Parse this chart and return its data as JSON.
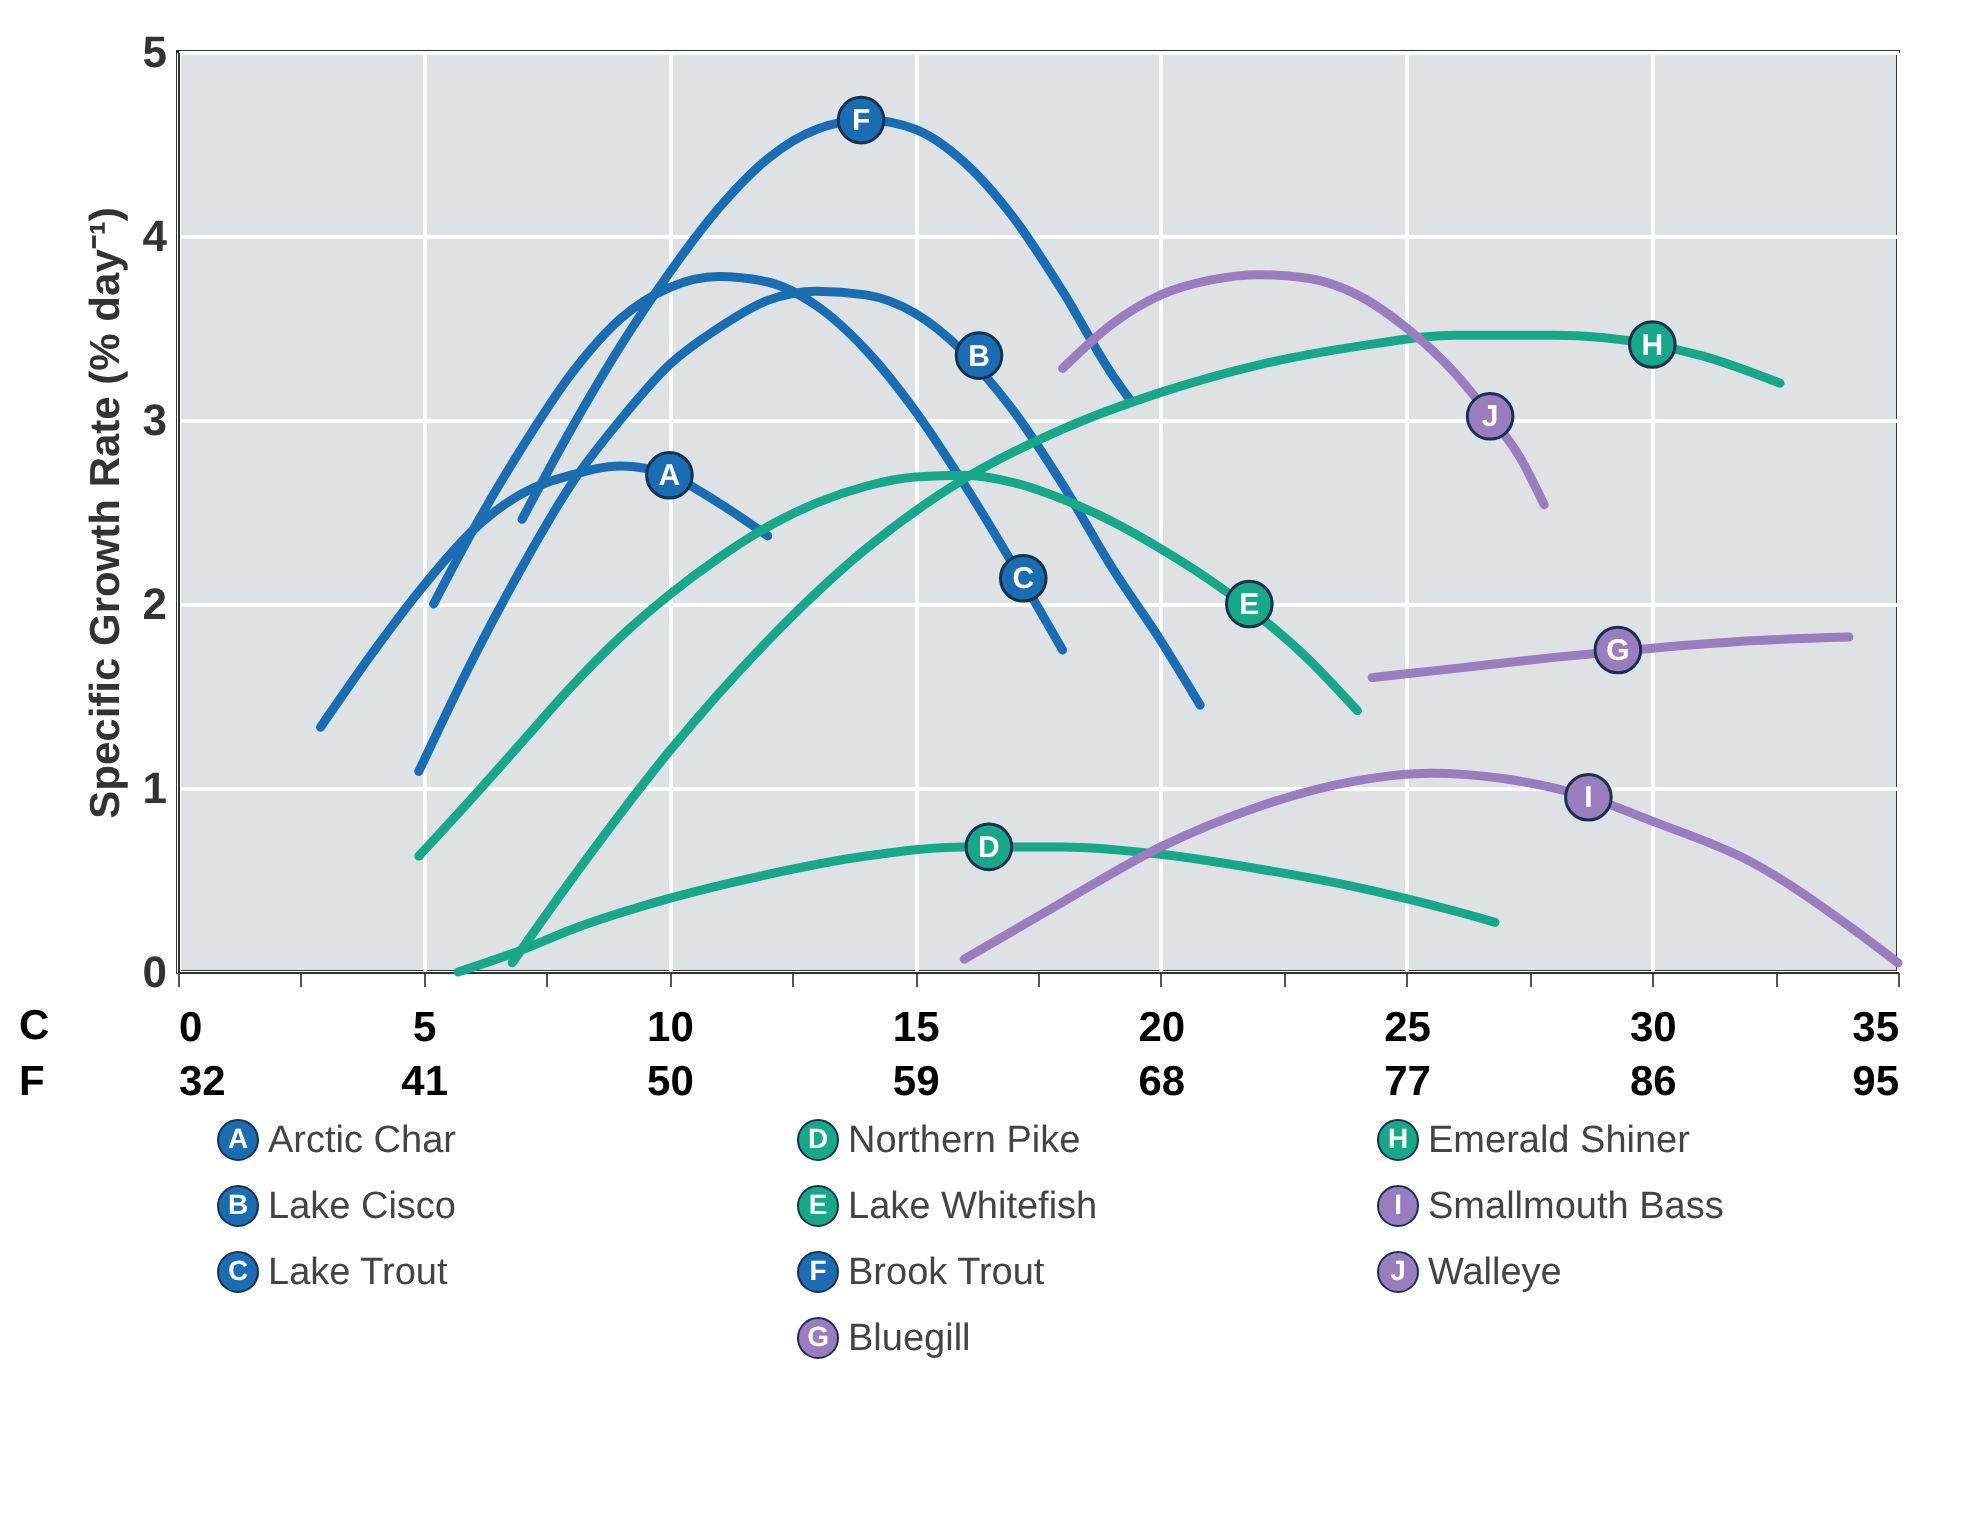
{
  "chart_data": {
    "type": "line",
    "xlabel": "C",
    "x2label": "F",
    "ylabel": "Specific Growth Rate (% day⁻¹)",
    "xlim": [
      0,
      35
    ],
    "xticks": [
      0,
      {
        "value": 2.5,
        "label": null
      },
      5,
      {
        "value": 7.5,
        "label": null
      },
      10,
      {
        "value": 12.5,
        "label": null
      },
      15,
      {
        "value": 17.5,
        "label": null
      },
      20,
      {
        "value": 22.5,
        "label": null
      },
      25,
      {
        "value": 27.5,
        "label": null
      },
      30,
      {
        "value": 32.5,
        "label": null
      },
      35
    ],
    "x2lim": [
      32,
      95
    ],
    "x2ticks": [
      32,
      41,
      50,
      59,
      68,
      77,
      86,
      95
    ],
    "ylim": [
      0,
      5
    ],
    "yticks": [
      0,
      1,
      2,
      3,
      4,
      5
    ],
    "grid": true,
    "legend": "bottom",
    "marker": "none",
    "line_style": "solid",
    "series": [
      {
        "name": "Arctic Char",
        "color": "#1b6db3",
        "x": [
          2.9,
          4,
          5,
          6,
          7,
          8,
          9,
          10,
          11,
          12
        ],
        "values": [
          1.33,
          1.75,
          2.1,
          2.4,
          2.6,
          2.7,
          2.75,
          2.7,
          2.55,
          2.37
        ]
      },
      {
        "name": "Lake Cisco",
        "color": "#1b6db3",
        "x": [
          4.9,
          6,
          7,
          8,
          9,
          10,
          11,
          12,
          13,
          14,
          15,
          17,
          18,
          19,
          20,
          20.8
        ],
        "values": [
          1.09,
          1.7,
          2.2,
          2.65,
          3.0,
          3.3,
          3.5,
          3.65,
          3.7,
          3.68,
          3.58,
          3.05,
          2.65,
          2.2,
          1.8,
          1.45
        ]
      },
      {
        "name": "Lake Trout",
        "color": "#1b6db3",
        "x": [
          5.2,
          6,
          7,
          8,
          9,
          10,
          11,
          12,
          13,
          14,
          15,
          16,
          18
        ],
        "values": [
          2.0,
          2.4,
          2.85,
          3.25,
          3.55,
          3.72,
          3.78,
          3.75,
          3.62,
          3.38,
          3.05,
          2.65,
          1.75
        ]
      },
      {
        "name": "Northern Pike",
        "color": "#17a889",
        "x": [
          5.7,
          7,
          8,
          10,
          12,
          14,
          16,
          18,
          20,
          22,
          24,
          26,
          26.8
        ],
        "values": [
          0,
          0.12,
          0.23,
          0.4,
          0.53,
          0.63,
          0.68,
          0.68,
          0.64,
          0.56,
          0.46,
          0.33,
          0.27
        ]
      },
      {
        "name": "Lake Whitefish",
        "color": "#17a889",
        "x": [
          4.9,
          6,
          7,
          8,
          9,
          10,
          11,
          12,
          13,
          14,
          15,
          16,
          17,
          18,
          19,
          20,
          21,
          23,
          24
        ],
        "values": [
          0.63,
          0.95,
          1.25,
          1.55,
          1.82,
          2.05,
          2.25,
          2.42,
          2.55,
          2.64,
          2.69,
          2.7,
          2.66,
          2.57,
          2.45,
          2.3,
          2.13,
          1.7,
          1.42
        ]
      },
      {
        "name": "Brook Trout",
        "color": "#1b6db3",
        "x": [
          7,
          8,
          9,
          10,
          11,
          12,
          13,
          14,
          15,
          16,
          17,
          18,
          19,
          19.4
        ],
        "values": [
          2.46,
          2.95,
          3.4,
          3.8,
          4.15,
          4.42,
          4.58,
          4.63,
          4.58,
          4.4,
          4.1,
          3.7,
          3.25,
          3.1
        ]
      },
      {
        "name": "Bluegill",
        "color": "#9a7dbf",
        "x": [
          24.3,
          26,
          28,
          30,
          32,
          34
        ],
        "values": [
          1.6,
          1.65,
          1.71,
          1.76,
          1.8,
          1.82
        ]
      },
      {
        "name": "Emerald Shiner",
        "color": "#17a889",
        "x": [
          6.8,
          8,
          10,
          12,
          14,
          16,
          18,
          20,
          22,
          24,
          26,
          28,
          30,
          31,
          32.6
        ],
        "values": [
          0.05,
          0.5,
          1.2,
          1.8,
          2.3,
          2.68,
          2.95,
          3.15,
          3.3,
          3.4,
          3.46,
          3.46,
          3.41,
          3.35,
          3.2
        ]
      },
      {
        "name": "Smallmouth Bass",
        "color": "#9a7dbf",
        "x": [
          16,
          18,
          20,
          22,
          24,
          25.5,
          27,
          28.7,
          30,
          32,
          34,
          35
        ],
        "values": [
          0.07,
          0.38,
          0.68,
          0.9,
          1.04,
          1.08,
          1.05,
          0.95,
          0.82,
          0.6,
          0.25,
          0.05
        ]
      },
      {
        "name": "Walleye",
        "color": "#9a7dbf",
        "x": [
          18,
          19,
          20,
          21,
          22,
          23,
          24,
          25,
          26,
          26.7,
          27.3,
          27.8
        ],
        "values": [
          3.28,
          3.52,
          3.68,
          3.76,
          3.79,
          3.77,
          3.68,
          3.5,
          3.25,
          3.02,
          2.8,
          2.54
        ]
      }
    ],
    "annotations": [
      {
        "text": "A",
        "x": 10,
        "y": 2.7
      },
      {
        "text": "B",
        "x": 16.3,
        "y": 3.35
      },
      {
        "text": "C",
        "x": 17.2,
        "y": 2.14
      },
      {
        "text": "D",
        "x": 16.5,
        "y": 0.68
      },
      {
        "text": "E",
        "x": 21.8,
        "y": 2.0
      },
      {
        "text": "F",
        "x": 13.9,
        "y": 4.63
      },
      {
        "text": "G",
        "x": 29.3,
        "y": 1.75
      },
      {
        "text": "H",
        "x": 30,
        "y": 3.41
      },
      {
        "text": "I",
        "x": 28.7,
        "y": 0.95
      },
      {
        "text": "J",
        "x": 26.7,
        "y": 3.02
      }
    ]
  }
}
